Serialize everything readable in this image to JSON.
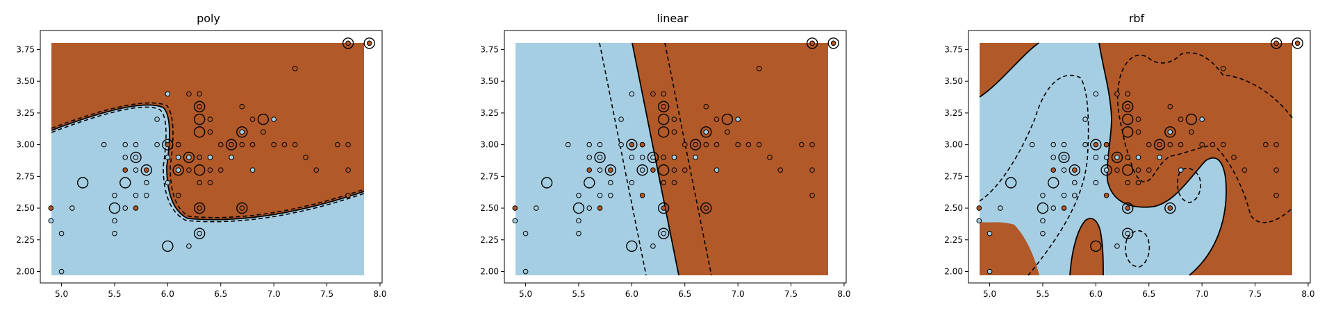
{
  "colors": {
    "class0_fill": "#a6cee3",
    "class1_fill": "#b15928",
    "outline": "#000000",
    "background": "#ffffff"
  },
  "chart_data": [
    {
      "type": "scatter",
      "title": "poly",
      "xlabel": "",
      "ylabel": "",
      "xlim": [
        4.8,
        8.02
      ],
      "ylim": [
        1.91,
        3.9
      ],
      "xticks": [
        "5.0",
        "5.5",
        "6.0",
        "6.5",
        "7.0",
        "7.5",
        "8.0"
      ],
      "yticks": [
        "2.00",
        "2.25",
        "2.50",
        "2.75",
        "3.00",
        "3.25",
        "3.50",
        "3.75"
      ],
      "grid": false,
      "decision_boundary": [
        [
          4.9,
          3.13
        ],
        [
          5.2,
          3.22
        ],
        [
          5.6,
          3.28
        ],
        [
          5.9,
          3.23
        ],
        [
          6.02,
          3.05
        ],
        [
          6.02,
          2.75
        ],
        [
          6.1,
          2.5
        ],
        [
          6.4,
          2.43
        ],
        [
          6.8,
          2.43
        ],
        [
          7.3,
          2.52
        ],
        [
          7.9,
          2.65
        ]
      ],
      "points_class0": [
        [
          4.9,
          2.4
        ],
        [
          5.0,
          2.3
        ],
        [
          5.0,
          2.0
        ],
        [
          5.1,
          2.5
        ],
        [
          5.4,
          3.0
        ],
        [
          5.5,
          2.6
        ],
        [
          5.5,
          2.4
        ],
        [
          5.5,
          2.3
        ],
        [
          5.6,
          3.0
        ],
        [
          5.6,
          2.9
        ],
        [
          5.6,
          2.5
        ],
        [
          5.7,
          3.0
        ],
        [
          5.7,
          2.9
        ],
        [
          5.7,
          2.8
        ],
        [
          5.7,
          2.6
        ],
        [
          5.8,
          2.7
        ],
        [
          5.8,
          2.6
        ],
        [
          5.9,
          3.2
        ],
        [
          5.9,
          3.0
        ],
        [
          6.0,
          3.4
        ],
        [
          6.0,
          2.9
        ],
        [
          6.0,
          2.7
        ],
        [
          6.1,
          3.0
        ],
        [
          6.1,
          2.9
        ],
        [
          6.1,
          2.8
        ],
        [
          6.2,
          2.9
        ],
        [
          6.2,
          2.2
        ],
        [
          6.3,
          2.3
        ],
        [
          6.4,
          2.9
        ],
        [
          6.6,
          2.9
        ],
        [
          6.7,
          3.1
        ],
        [
          6.8,
          2.8
        ],
        [
          7.0,
          3.2
        ]
      ],
      "points_class1": [
        [
          4.9,
          2.5
        ],
        [
          5.6,
          2.8
        ],
        [
          5.7,
          2.5
        ],
        [
          5.8,
          2.8
        ],
        [
          6.0,
          3.0
        ],
        [
          6.1,
          3.0
        ],
        [
          6.1,
          2.6
        ],
        [
          6.2,
          3.4
        ],
        [
          6.2,
          2.8
        ],
        [
          6.3,
          3.4
        ],
        [
          6.3,
          3.3
        ],
        [
          6.3,
          2.9
        ],
        [
          6.3,
          2.7
        ],
        [
          6.3,
          2.5
        ],
        [
          6.4,
          3.2
        ],
        [
          6.4,
          3.1
        ],
        [
          6.4,
          2.8
        ],
        [
          6.4,
          2.7
        ],
        [
          6.5,
          3.0
        ],
        [
          6.5,
          2.8
        ],
        [
          6.6,
          3.0
        ],
        [
          6.7,
          3.3
        ],
        [
          6.7,
          3.0
        ],
        [
          6.7,
          2.5
        ],
        [
          6.8,
          3.2
        ],
        [
          6.8,
          3.0
        ],
        [
          6.9,
          3.1
        ],
        [
          7.0,
          3.0
        ],
        [
          7.1,
          3.0
        ],
        [
          7.2,
          3.6
        ],
        [
          7.2,
          3.0
        ],
        [
          7.3,
          2.9
        ],
        [
          7.4,
          2.8
        ],
        [
          7.6,
          3.0
        ],
        [
          7.7,
          3.8
        ],
        [
          7.7,
          3.0
        ],
        [
          7.7,
          2.8
        ],
        [
          7.7,
          2.6
        ],
        [
          7.9,
          3.8
        ]
      ],
      "support_vectors": [
        [
          5.5,
          2.5
        ],
        [
          5.2,
          2.7
        ],
        [
          5.6,
          2.7
        ],
        [
          5.7,
          2.9
        ],
        [
          5.8,
          2.8
        ],
        [
          6.0,
          3.0
        ],
        [
          6.0,
          2.2
        ],
        [
          6.1,
          2.8
        ],
        [
          6.2,
          2.9
        ],
        [
          6.3,
          3.3
        ],
        [
          6.3,
          3.2
        ],
        [
          6.3,
          3.1
        ],
        [
          6.3,
          2.8
        ],
        [
          6.3,
          2.5
        ],
        [
          6.3,
          2.3
        ],
        [
          6.6,
          3.0
        ],
        [
          6.7,
          3.1
        ],
        [
          6.7,
          2.5
        ],
        [
          6.9,
          3.2
        ],
        [
          7.7,
          3.8
        ],
        [
          7.9,
          3.8
        ]
      ]
    },
    {
      "type": "scatter",
      "title": "linear",
      "xlabel": "",
      "ylabel": "",
      "xlim": [
        4.8,
        8.02
      ],
      "ylim": [
        1.91,
        3.9
      ],
      "xticks": [
        "5.0",
        "5.5",
        "6.0",
        "6.5",
        "7.0",
        "7.5",
        "8.0"
      ],
      "yticks": [
        "2.00",
        "2.25",
        "2.50",
        "2.75",
        "3.00",
        "3.25",
        "3.50",
        "3.75"
      ],
      "grid": false,
      "decision_boundary": [
        [
          6.02,
          3.8
        ],
        [
          6.48,
          2.0
        ]
      ],
      "points_class0": [
        [
          4.9,
          2.4
        ],
        [
          5.0,
          2.3
        ],
        [
          5.0,
          2.0
        ],
        [
          5.1,
          2.5
        ],
        [
          5.4,
          3.0
        ],
        [
          5.5,
          2.6
        ],
        [
          5.5,
          2.4
        ],
        [
          5.5,
          2.3
        ],
        [
          5.6,
          3.0
        ],
        [
          5.6,
          2.9
        ],
        [
          5.6,
          2.5
        ],
        [
          5.7,
          3.0
        ],
        [
          5.7,
          2.9
        ],
        [
          5.7,
          2.8
        ],
        [
          5.7,
          2.6
        ],
        [
          5.8,
          2.7
        ],
        [
          5.8,
          2.6
        ],
        [
          5.9,
          3.2
        ],
        [
          5.9,
          3.0
        ],
        [
          6.0,
          3.4
        ],
        [
          6.0,
          2.9
        ],
        [
          6.0,
          2.7
        ],
        [
          6.1,
          3.0
        ],
        [
          6.1,
          2.9
        ],
        [
          6.1,
          2.8
        ],
        [
          6.2,
          2.9
        ],
        [
          6.2,
          2.2
        ],
        [
          6.3,
          2.3
        ],
        [
          6.4,
          2.9
        ],
        [
          6.6,
          2.9
        ],
        [
          6.7,
          3.1
        ],
        [
          6.8,
          2.8
        ],
        [
          7.0,
          3.2
        ]
      ],
      "points_class1": [
        [
          4.9,
          2.5
        ],
        [
          5.6,
          2.8
        ],
        [
          5.7,
          2.5
        ],
        [
          5.8,
          2.8
        ],
        [
          6.0,
          3.0
        ],
        [
          6.1,
          3.0
        ],
        [
          6.1,
          2.6
        ],
        [
          6.2,
          3.4
        ],
        [
          6.2,
          2.8
        ],
        [
          6.3,
          3.4
        ],
        [
          6.3,
          3.3
        ],
        [
          6.3,
          2.9
        ],
        [
          6.3,
          2.7
        ],
        [
          6.3,
          2.5
        ],
        [
          6.4,
          3.2
        ],
        [
          6.4,
          3.1
        ],
        [
          6.4,
          2.8
        ],
        [
          6.4,
          2.7
        ],
        [
          6.5,
          3.0
        ],
        [
          6.5,
          2.8
        ],
        [
          6.6,
          3.0
        ],
        [
          6.7,
          3.3
        ],
        [
          6.7,
          3.0
        ],
        [
          6.7,
          2.5
        ],
        [
          6.8,
          3.2
        ],
        [
          6.8,
          3.0
        ],
        [
          6.9,
          3.1
        ],
        [
          7.0,
          3.0
        ],
        [
          7.1,
          3.0
        ],
        [
          7.2,
          3.6
        ],
        [
          7.2,
          3.0
        ],
        [
          7.3,
          2.9
        ],
        [
          7.4,
          2.8
        ],
        [
          7.6,
          3.0
        ],
        [
          7.7,
          3.8
        ],
        [
          7.7,
          3.0
        ],
        [
          7.7,
          2.8
        ],
        [
          7.7,
          2.6
        ],
        [
          7.9,
          3.8
        ]
      ],
      "support_vectors": [
        [
          5.5,
          2.5
        ],
        [
          5.2,
          2.7
        ],
        [
          5.6,
          2.7
        ],
        [
          5.7,
          2.9
        ],
        [
          5.8,
          2.8
        ],
        [
          6.0,
          3.0
        ],
        [
          6.0,
          2.2
        ],
        [
          6.1,
          2.8
        ],
        [
          6.2,
          2.9
        ],
        [
          6.3,
          3.3
        ],
        [
          6.3,
          3.2
        ],
        [
          6.3,
          3.1
        ],
        [
          6.3,
          2.8
        ],
        [
          6.3,
          2.5
        ],
        [
          6.3,
          2.3
        ],
        [
          6.6,
          3.0
        ],
        [
          6.7,
          3.1
        ],
        [
          6.7,
          2.5
        ],
        [
          6.9,
          3.2
        ],
        [
          7.7,
          3.8
        ],
        [
          7.9,
          3.8
        ]
      ]
    },
    {
      "type": "scatter",
      "title": "rbf",
      "xlabel": "",
      "ylabel": "",
      "xlim": [
        4.8,
        8.02
      ],
      "ylim": [
        1.91,
        3.9
      ],
      "xticks": [
        "5.0",
        "5.5",
        "6.0",
        "6.5",
        "7.0",
        "7.5",
        "8.0"
      ],
      "yticks": [
        "2.00",
        "2.25",
        "2.50",
        "2.75",
        "3.00",
        "3.25",
        "3.50",
        "3.75"
      ],
      "grid": false,
      "decision_boundary": [
        [
          6.0,
          3.8
        ],
        [
          6.05,
          3.5
        ],
        [
          6.12,
          3.3
        ],
        [
          6.1,
          3.05
        ],
        [
          6.05,
          2.8
        ],
        [
          6.08,
          2.6
        ],
        [
          6.2,
          2.5
        ],
        [
          6.5,
          2.55
        ],
        [
          6.68,
          2.75
        ],
        [
          6.82,
          2.92
        ],
        [
          6.98,
          2.78
        ],
        [
          7.05,
          2.5
        ],
        [
          6.98,
          2.15
        ],
        [
          6.83,
          2.0
        ]
      ],
      "points_class0": [
        [
          4.9,
          2.4
        ],
        [
          5.0,
          2.3
        ],
        [
          5.0,
          2.0
        ],
        [
          5.1,
          2.5
        ],
        [
          5.4,
          3.0
        ],
        [
          5.5,
          2.6
        ],
        [
          5.5,
          2.4
        ],
        [
          5.5,
          2.3
        ],
        [
          5.6,
          3.0
        ],
        [
          5.6,
          2.9
        ],
        [
          5.6,
          2.5
        ],
        [
          5.7,
          3.0
        ],
        [
          5.7,
          2.9
        ],
        [
          5.7,
          2.8
        ],
        [
          5.7,
          2.6
        ],
        [
          5.8,
          2.7
        ],
        [
          5.8,
          2.6
        ],
        [
          5.9,
          3.2
        ],
        [
          5.9,
          3.0
        ],
        [
          6.0,
          3.4
        ],
        [
          6.0,
          2.9
        ],
        [
          6.0,
          2.7
        ],
        [
          6.1,
          3.0
        ],
        [
          6.1,
          2.9
        ],
        [
          6.1,
          2.8
        ],
        [
          6.2,
          2.9
        ],
        [
          6.2,
          2.2
        ],
        [
          6.3,
          2.3
        ],
        [
          6.4,
          2.9
        ],
        [
          6.6,
          2.9
        ],
        [
          6.7,
          3.1
        ],
        [
          6.8,
          2.8
        ],
        [
          7.0,
          3.2
        ]
      ],
      "points_class1": [
        [
          4.9,
          2.5
        ],
        [
          5.6,
          2.8
        ],
        [
          5.7,
          2.5
        ],
        [
          5.8,
          2.8
        ],
        [
          6.0,
          3.0
        ],
        [
          6.1,
          3.0
        ],
        [
          6.1,
          2.6
        ],
        [
          6.2,
          3.4
        ],
        [
          6.2,
          2.8
        ],
        [
          6.3,
          3.4
        ],
        [
          6.3,
          3.3
        ],
        [
          6.3,
          2.9
        ],
        [
          6.3,
          2.7
        ],
        [
          6.3,
          2.5
        ],
        [
          6.4,
          3.2
        ],
        [
          6.4,
          3.1
        ],
        [
          6.4,
          2.8
        ],
        [
          6.4,
          2.7
        ],
        [
          6.5,
          3.0
        ],
        [
          6.5,
          2.8
        ],
        [
          6.6,
          3.0
        ],
        [
          6.7,
          3.3
        ],
        [
          6.7,
          3.0
        ],
        [
          6.7,
          2.5
        ],
        [
          6.8,
          3.2
        ],
        [
          6.8,
          3.0
        ],
        [
          6.9,
          3.1
        ],
        [
          7.0,
          3.0
        ],
        [
          7.1,
          3.0
        ],
        [
          7.2,
          3.6
        ],
        [
          7.2,
          3.0
        ],
        [
          7.3,
          2.9
        ],
        [
          7.4,
          2.8
        ],
        [
          7.6,
          3.0
        ],
        [
          7.7,
          3.8
        ],
        [
          7.7,
          3.0
        ],
        [
          7.7,
          2.8
        ],
        [
          7.7,
          2.6
        ],
        [
          7.9,
          3.8
        ]
      ],
      "support_vectors": [
        [
          5.5,
          2.5
        ],
        [
          5.2,
          2.7
        ],
        [
          5.6,
          2.7
        ],
        [
          5.7,
          2.9
        ],
        [
          5.8,
          2.8
        ],
        [
          6.0,
          3.0
        ],
        [
          6.0,
          2.2
        ],
        [
          6.1,
          2.8
        ],
        [
          6.2,
          2.9
        ],
        [
          6.3,
          3.3
        ],
        [
          6.3,
          3.2
        ],
        [
          6.3,
          3.1
        ],
        [
          6.3,
          2.8
        ],
        [
          6.3,
          2.5
        ],
        [
          6.3,
          2.3
        ],
        [
          6.6,
          3.0
        ],
        [
          6.7,
          3.1
        ],
        [
          6.7,
          2.5
        ],
        [
          6.9,
          3.2
        ],
        [
          7.7,
          3.8
        ],
        [
          7.9,
          3.8
        ]
      ]
    }
  ]
}
